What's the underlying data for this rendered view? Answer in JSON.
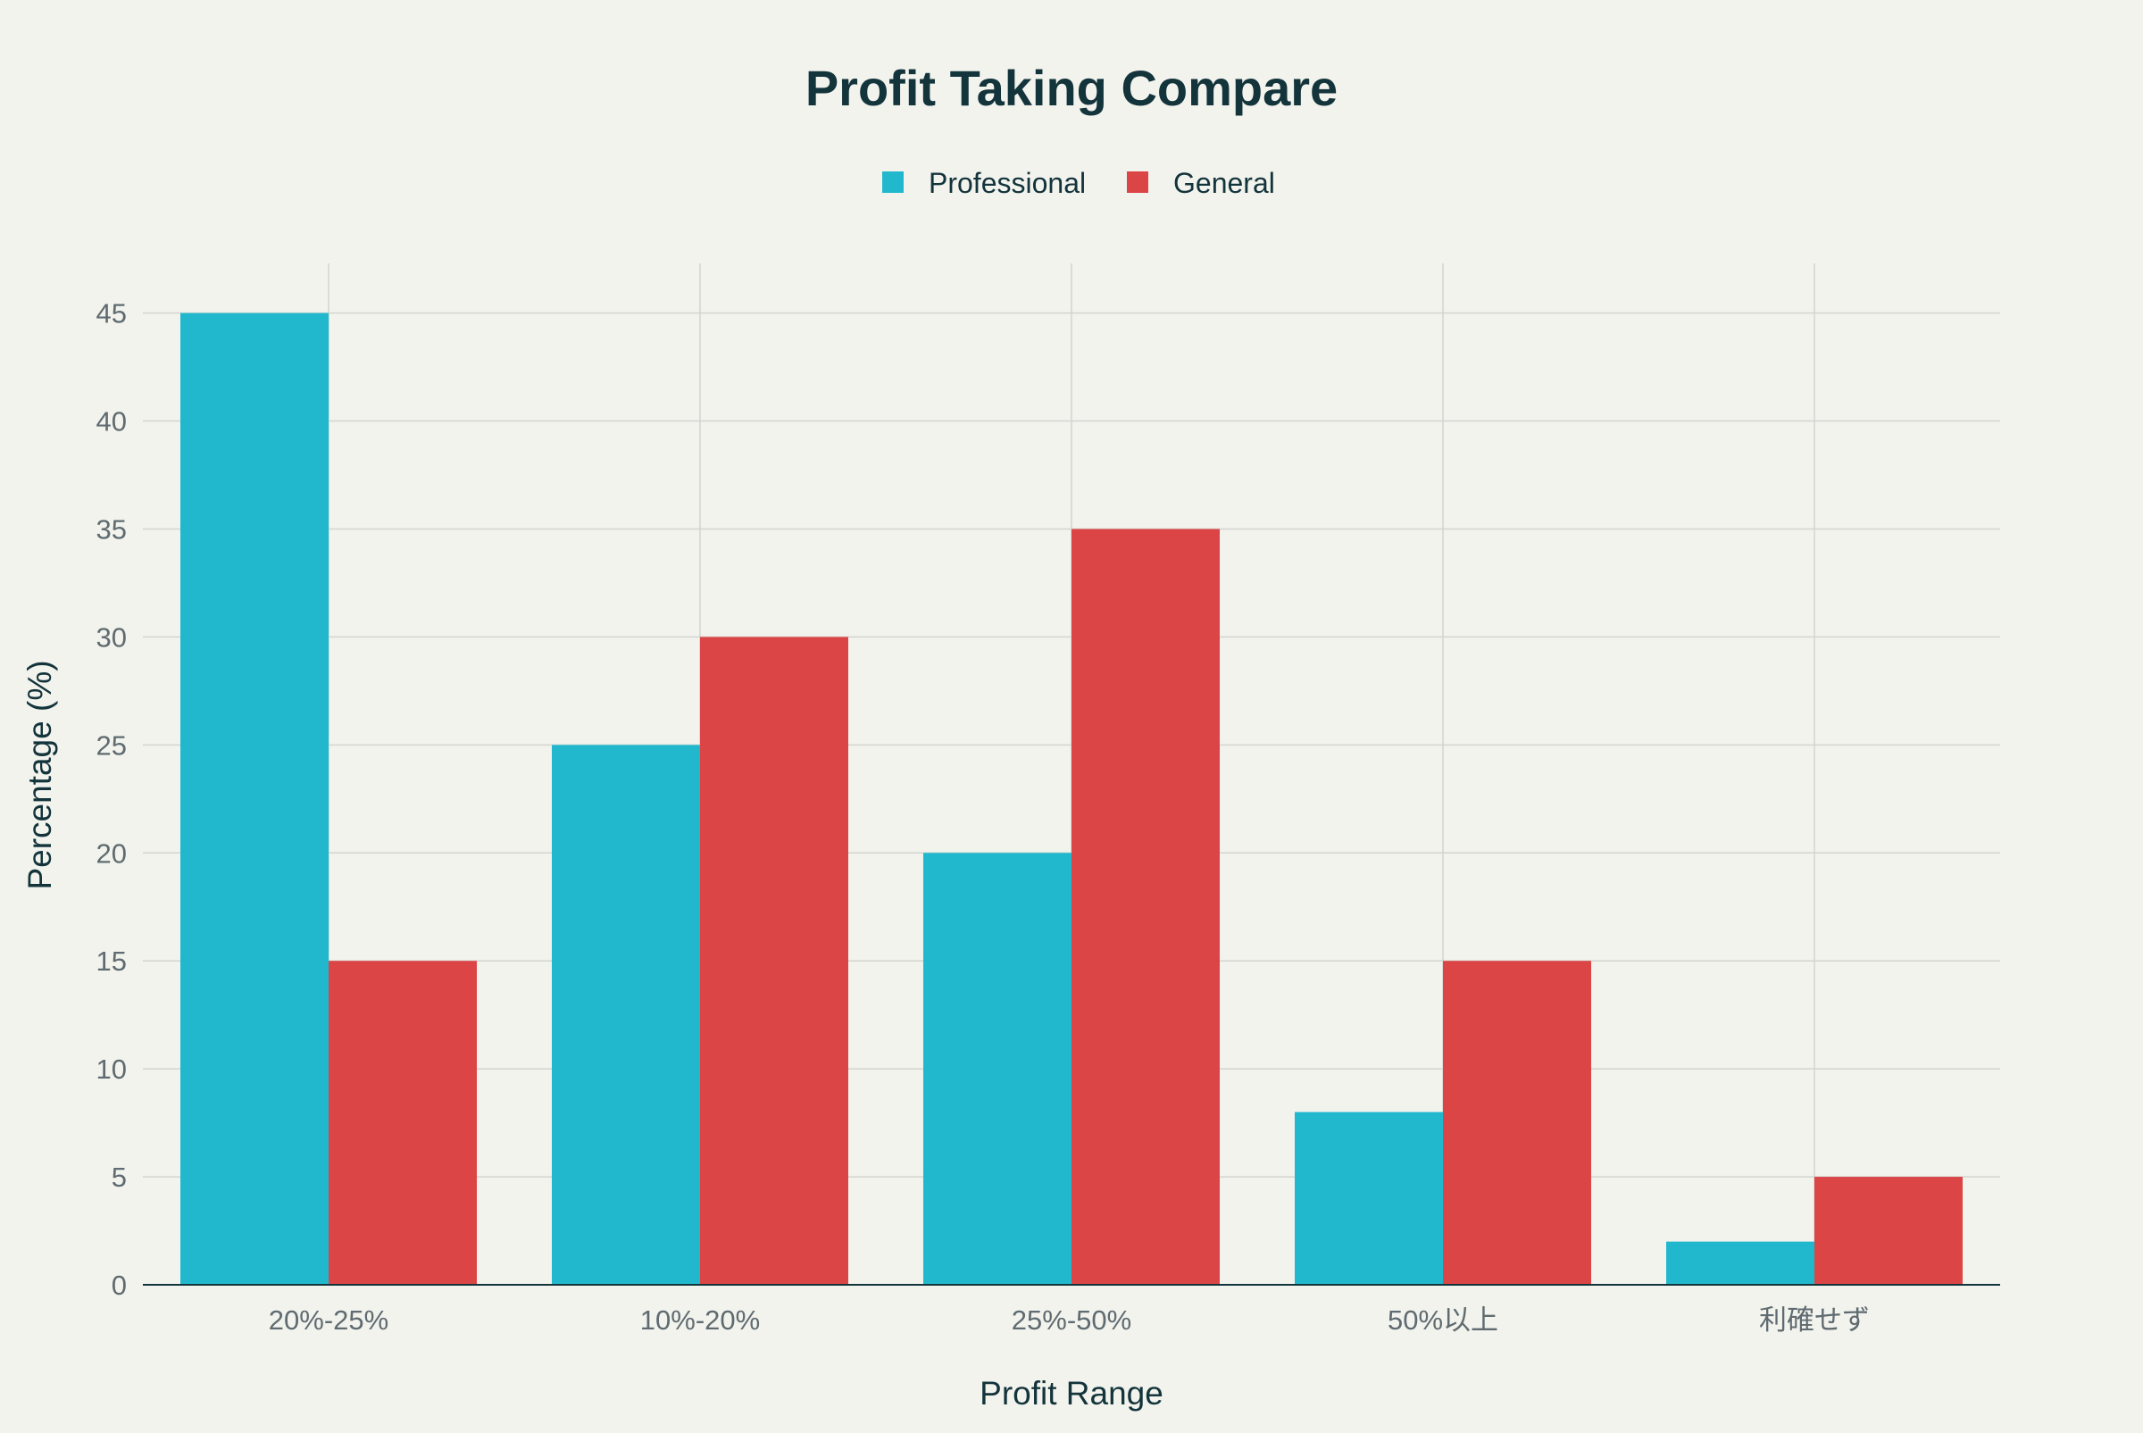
{
  "chart_data": {
    "type": "bar",
    "title": "Profit Taking Compare",
    "xlabel": "Profit Range",
    "ylabel": "Percentage (%)",
    "categories": [
      "20%-25%",
      "10%-20%",
      "25%-50%",
      "50%以上",
      "利確せず"
    ],
    "series": [
      {
        "name": "Professional",
        "color": "#21b8cd",
        "values": [
          45,
          25,
          20,
          8,
          2
        ]
      },
      {
        "name": "General",
        "color": "#db4546",
        "values": [
          15,
          30,
          35,
          15,
          5
        ]
      }
    ],
    "ylim": [
      0,
      47.3
    ],
    "yticks": [
      0,
      5,
      10,
      15,
      20,
      25,
      30,
      35,
      40,
      45
    ],
    "grid": true,
    "legend": "top-center"
  }
}
